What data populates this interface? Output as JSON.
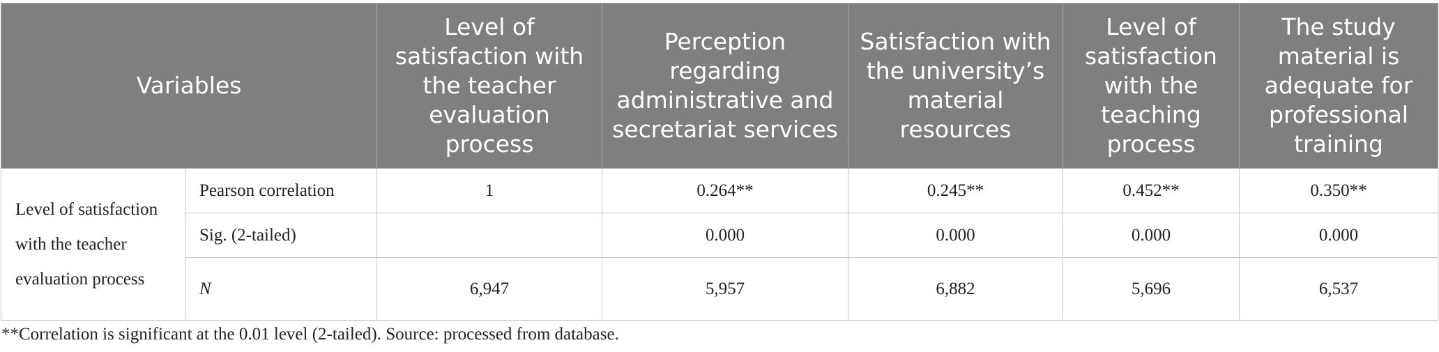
{
  "table": {
    "variables": "Variables",
    "columns": [
      "Level of satisfaction with the teacher evaluation process",
      "Perception regarding administrative and secretariat services",
      "Satisfaction with the university’s material resources",
      "Level of satisfaction with the teaching process",
      "The study material is adequate for professional training"
    ],
    "row_label": "Level of satisfaction with the teacher evaluation process",
    "rows": [
      {
        "stat": "Pearson correlation",
        "values": [
          "1",
          "0.264**",
          "0.245**",
          "0.452**",
          "0.350**"
        ]
      },
      {
        "stat": "Sig. (2-tailed)",
        "values": [
          null,
          "0.000",
          "0.000",
          "0.000",
          "0.000"
        ]
      },
      {
        "stat": "N",
        "values": [
          "6,947",
          "5,957",
          "6,882",
          "5,696",
          "6,537"
        ]
      }
    ]
  },
  "footnote": "**Correlation is significant at the 0.01 level (2-tailed). Source: processed from database."
}
